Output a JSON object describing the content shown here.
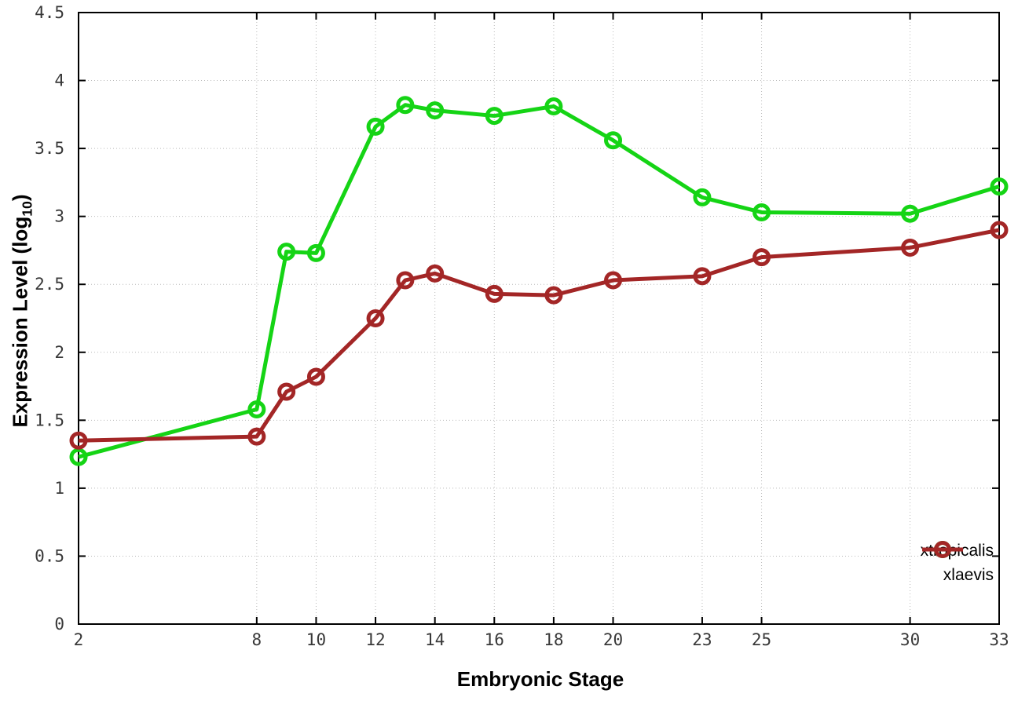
{
  "chart_data": {
    "type": "line",
    "title": "",
    "xlabel": "Embryonic Stage",
    "ylabel": "Expression Level (log10)",
    "ylabel_parts": {
      "text": "Expression Level (log",
      "sub": "10",
      "suffix": ")"
    },
    "xlim": [
      2,
      33
    ],
    "ylim": [
      0,
      4.5
    ],
    "grid": true,
    "legend_position": "inside-bottom-right",
    "marker": "open-circle",
    "x_ticks": [
      2,
      8,
      10,
      12,
      14,
      16,
      18,
      20,
      23,
      25,
      30,
      33
    ],
    "x_tick_labels": [
      "2",
      "8",
      "10",
      "12",
      "14",
      "16",
      "18",
      "20",
      "23",
      "25",
      "30",
      "33"
    ],
    "y_ticks": [
      0,
      0.5,
      1,
      1.5,
      2,
      2.5,
      3,
      3.5,
      4,
      4.5
    ],
    "y_tick_labels": [
      "0",
      "0.5",
      "1",
      "1.5",
      "2",
      "2.5",
      "3",
      "3.5",
      "4",
      "4.5"
    ],
    "x": [
      2,
      8,
      9,
      10,
      12,
      13,
      14,
      16,
      18,
      20,
      23,
      25,
      30,
      33
    ],
    "series": [
      {
        "name": "xtropicalis",
        "color": "#15d415",
        "values": [
          1.23,
          1.58,
          2.74,
          2.73,
          3.66,
          3.82,
          3.78,
          3.74,
          3.81,
          3.56,
          3.14,
          3.03,
          3.02,
          3.22
        ]
      },
      {
        "name": "xlaevis",
        "color": "#a32626",
        "values": [
          1.35,
          1.38,
          1.71,
          1.82,
          2.25,
          2.53,
          2.58,
          2.43,
          2.42,
          2.53,
          2.56,
          2.7,
          2.77,
          2.9
        ]
      }
    ]
  },
  "colors": {
    "background": "#ffffff",
    "border": "#000000",
    "gridline": "#b9b9b9",
    "tick_label": "#383838"
  }
}
